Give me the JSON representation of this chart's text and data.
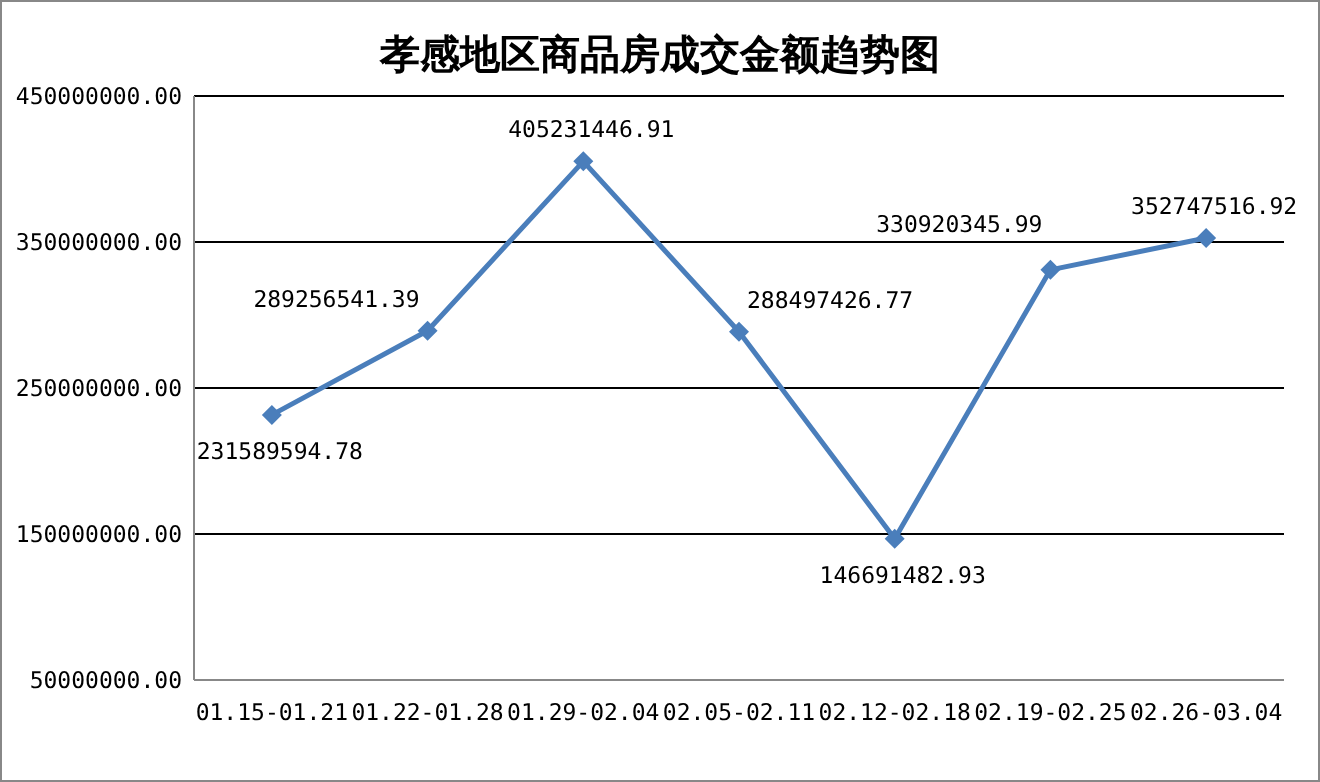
{
  "chart_data": {
    "type": "line",
    "title": "孝感地区商品房成交金额趋势图",
    "categories": [
      "01.15-01.21",
      "01.22-01.28",
      "01.29-02.04",
      "02.05-02.11",
      "02.12-02.18",
      "02.19-02.25",
      "02.26-03.04"
    ],
    "series": [
      {
        "color": "#4a7ebb",
        "values": [
          231589594.78,
          289256541.39,
          405231446.91,
          288497426.77,
          146691482.93,
          330920345.99,
          352747516.92
        ],
        "value_labels": [
          "231589594.78",
          "289256541.39",
          "405231446.91",
          "288497426.77",
          "146691482.93",
          "330920345.99",
          "352747516.92"
        ]
      }
    ],
    "ylim": [
      50000000,
      450000000
    ],
    "yticks": [
      {
        "value": 50000000,
        "label": "50000000.00"
      },
      {
        "value": 150000000,
        "label": "150000000.00"
      },
      {
        "value": 250000000,
        "label": "250000000.00"
      },
      {
        "value": 350000000,
        "label": "350000000.00"
      },
      {
        "value": 450000000,
        "label": "450000000.00"
      }
    ],
    "grid": "y",
    "marker": "diamond",
    "line_style": "solid"
  }
}
